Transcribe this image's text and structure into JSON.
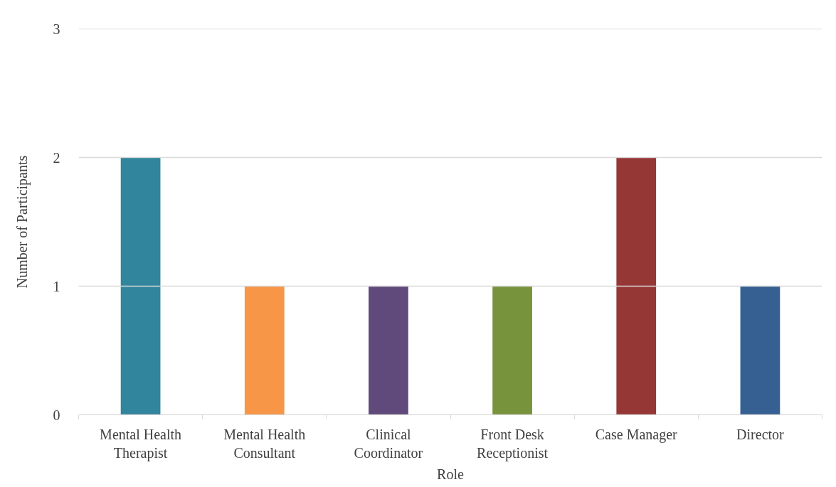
{
  "chart_data": {
    "type": "bar",
    "xlabel": "Role",
    "ylabel": "Number of Participants",
    "categories": [
      "Mental Health Therapist",
      "Mental Health Consultant",
      "Clinical Coordinator",
      "Front Desk Receptionist",
      "Case Manager",
      "Director"
    ],
    "values": [
      2,
      1,
      1,
      1,
      2,
      1
    ],
    "colors": [
      "#31859c",
      "#f79646",
      "#604a7b",
      "#77933c",
      "#953735",
      "#366092"
    ],
    "ylim": [
      0,
      3
    ],
    "yticks": [
      0,
      1,
      2,
      3
    ],
    "grid": "y"
  }
}
